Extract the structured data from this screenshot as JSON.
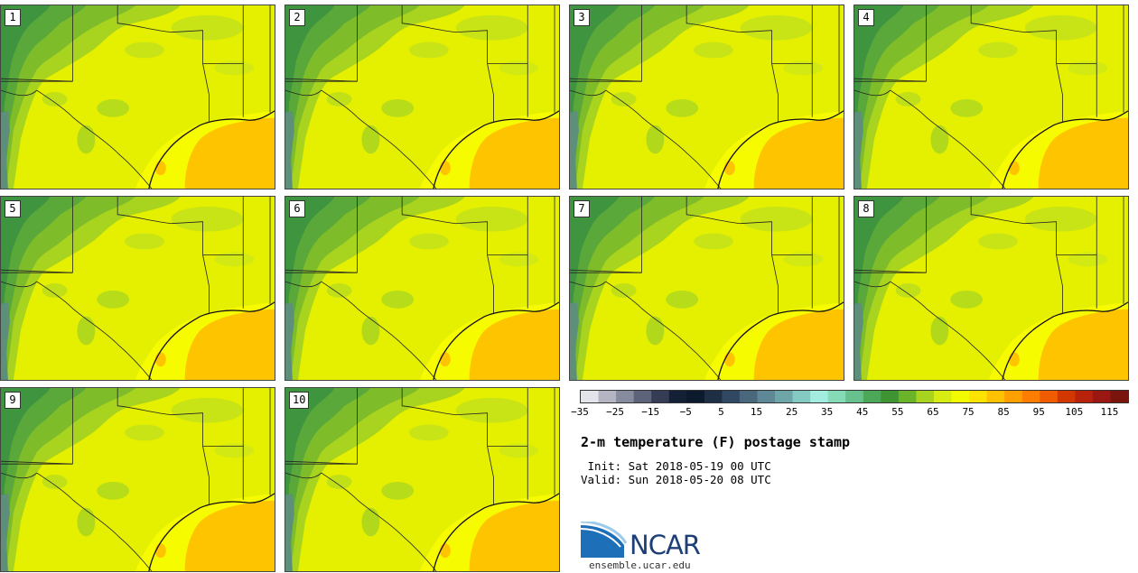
{
  "members": [
    "1",
    "2",
    "3",
    "4",
    "5",
    "6",
    "7",
    "8",
    "9",
    "10"
  ],
  "colorbar": {
    "colors": [
      "#e3e3ea",
      "#b3b6c2",
      "#868b9d",
      "#5d6479",
      "#343d55",
      "#142036",
      "#0b1a2d",
      "#1d2e45",
      "#314862",
      "#4b677c",
      "#5e8895",
      "#6da5a8",
      "#85c9c3",
      "#a2ece0",
      "#85dbb5",
      "#66c18d",
      "#4ca858",
      "#3e9432",
      "#6bb42a",
      "#a8d31e",
      "#d7ec12",
      "#f3fb00",
      "#ffe300",
      "#ffc100",
      "#ffa000",
      "#fd7d00",
      "#f05d00",
      "#d23700",
      "#b8220b",
      "#9a1811",
      "#7a150e"
    ],
    "tick_labels": [
      "−35",
      "−25",
      "−15",
      "−5",
      "5",
      "15",
      "25",
      "35",
      "45",
      "55",
      "65",
      "75",
      "85",
      "95",
      "105",
      "115"
    ]
  },
  "title": "2-m temperature (F) postage stamp",
  "init": " Init: Sat 2018-05-19 00 UTC",
  "valid": "Valid: Sun 2018-05-20 08 UTC",
  "logo": {
    "name": "NCAR",
    "url": "ensemble.ucar.edu"
  }
}
